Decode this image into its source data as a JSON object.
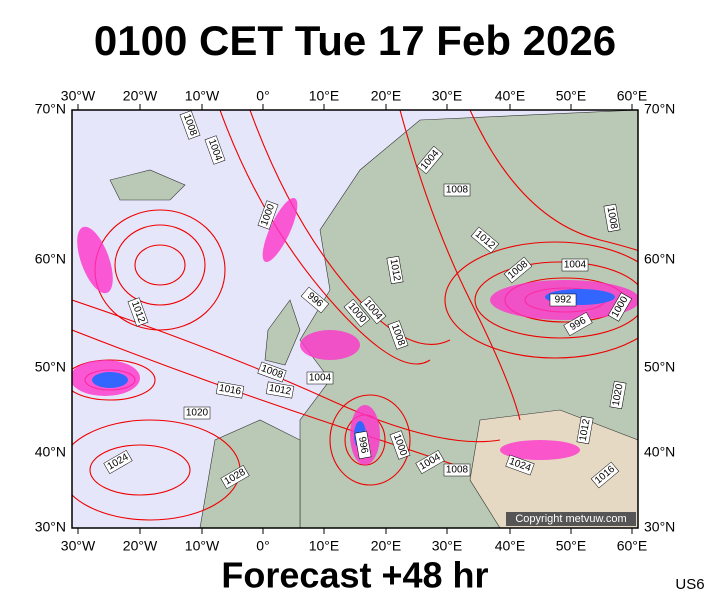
{
  "header": {
    "title": "0100 CET Tue 17 Feb 2026"
  },
  "map": {
    "lon_labels": [
      "30°W",
      "20°W",
      "10°W",
      "0°",
      "10°E",
      "20°E",
      "30°E",
      "40°E",
      "50°E",
      "60°E"
    ],
    "lat_labels": [
      "70°N",
      "60°N",
      "50°N",
      "40°N",
      "30°N"
    ],
    "isobar_labels": [
      "1008",
      "1004",
      "1000",
      "1004",
      "1008",
      "1012",
      "1012",
      "1008",
      "1004",
      "1008",
      "992",
      "996",
      "1000",
      "1012",
      "996",
      "1000",
      "1004",
      "1008",
      "1008",
      "1004",
      "1012",
      "1016",
      "1020",
      "1020",
      "1012",
      "1016",
      "1024",
      "1008",
      "1004",
      "1000",
      "996",
      "1024",
      "1028"
    ],
    "copyright": "Copyright metvuw.com"
  },
  "footer": {
    "caption": "Forecast +48 hr",
    "code": "US6"
  }
}
